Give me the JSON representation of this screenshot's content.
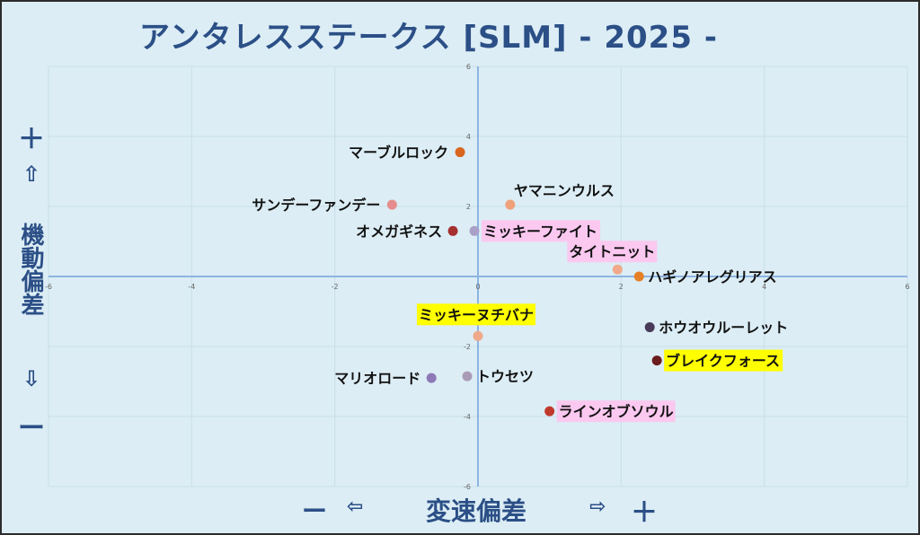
{
  "title": "アンタレスステークス [SLM]  - 2025 -",
  "y_axis": {
    "plus": "＋",
    "up_arrow": "⇧",
    "label": "機動偏差",
    "down_arrow": "⇩",
    "minus": "ー"
  },
  "x_axis": {
    "minus": "ー",
    "left_arrow": "⇦",
    "label": "変速偏差",
    "right_arrow": "⇨",
    "plus": "＋"
  },
  "chart_data": {
    "type": "scatter",
    "xlim": [
      -6,
      6
    ],
    "ylim": [
      -6,
      6
    ],
    "x_ticks": [
      "-6",
      "-4",
      "-2",
      "0",
      "2",
      "4",
      "6"
    ],
    "y_ticks": [
      "6",
      "4",
      "2",
      "0",
      "-2",
      "-4",
      "-6"
    ],
    "grid": true,
    "points": [
      {
        "label": "マーブルロック",
        "x": -0.25,
        "y": 3.55,
        "color": "#d9651f",
        "highlight": "none",
        "label_side": "left"
      },
      {
        "label": "ヤマニンウルス",
        "x": 0.45,
        "y": 2.05,
        "color": "#f0a17a",
        "highlight": "none",
        "label_side": "right-above"
      },
      {
        "label": "サンデーファンデー",
        "x": -1.2,
        "y": 2.05,
        "color": "#e58d8d",
        "highlight": "none",
        "label_side": "left"
      },
      {
        "label": "ミッキーファイト",
        "x": -0.05,
        "y": 1.3,
        "color": "#a9a0c8",
        "highlight": "pink",
        "label_side": "right"
      },
      {
        "label": "オメガギネス",
        "x": -0.35,
        "y": 1.3,
        "color": "#a6302f",
        "highlight": "none",
        "label_side": "left"
      },
      {
        "label": "タイトニット",
        "x": 1.95,
        "y": 0.2,
        "color": "#f0a98a",
        "highlight": "pink",
        "label_side": "left-above"
      },
      {
        "label": "ハギノアレグリアス",
        "x": 2.25,
        "y": 0.0,
        "color": "#e58026",
        "highlight": "none",
        "label_side": "right"
      },
      {
        "label": "ホウオウルーレット",
        "x": 2.4,
        "y": -1.45,
        "color": "#4a3a5a",
        "highlight": "none",
        "label_side": "right"
      },
      {
        "label": "ミッキーヌチバナ",
        "x": 0.0,
        "y": -1.7,
        "color": "#f0a98a",
        "highlight": "yellow",
        "label_side": "above"
      },
      {
        "label": "ブレイクフォース",
        "x": 2.5,
        "y": -2.4,
        "color": "#6b1c1c",
        "highlight": "yellow",
        "label_side": "right"
      },
      {
        "label": "マリオロード",
        "x": -0.65,
        "y": -2.9,
        "color": "#8f78b8",
        "highlight": "none",
        "label_side": "left"
      },
      {
        "label": "トウセツ",
        "x": -0.15,
        "y": -2.85,
        "color": "#a99ab8",
        "highlight": "none",
        "label_side": "right"
      },
      {
        "label": "ラインオブソウル",
        "x": 1.0,
        "y": -3.85,
        "color": "#c0392b",
        "highlight": "pink",
        "label_side": "right"
      }
    ],
    "highlight_colors": {
      "pink": "#fbc8f0",
      "yellow": "#ffff00"
    },
    "axis_color": "#8db4e2",
    "grid_color": "#c9dfe8"
  }
}
